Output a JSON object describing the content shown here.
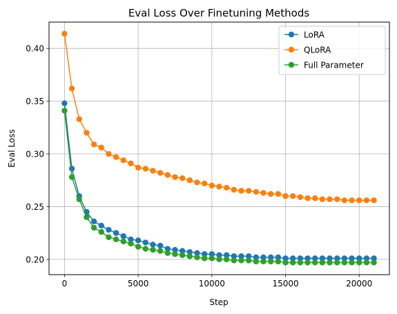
{
  "chart_data": {
    "type": "line",
    "title": "Eval Loss Over Finetuning Methods",
    "xlabel": "Step",
    "ylabel": "Eval Loss",
    "xlim": [
      -1050,
      22050
    ],
    "ylim": [
      0.1855,
      0.425
    ],
    "xticks": [
      0,
      5000,
      10000,
      15000,
      20000
    ],
    "xtick_labels": [
      "0",
      "5000",
      "10000",
      "15000",
      "20000"
    ],
    "yticks": [
      0.2,
      0.25,
      0.3,
      0.35,
      0.4
    ],
    "ytick_labels": [
      "0.20",
      "0.25",
      "0.30",
      "0.35",
      "0.40"
    ],
    "grid": true,
    "legend": "top-right",
    "x": [
      0,
      500,
      1000,
      1500,
      2000,
      2500,
      3000,
      3500,
      4000,
      4500,
      5000,
      5500,
      6000,
      6500,
      7000,
      7500,
      8000,
      8500,
      9000,
      9500,
      10000,
      10500,
      11000,
      11500,
      12000,
      12500,
      13000,
      13500,
      14000,
      14500,
      15000,
      15500,
      16000,
      16500,
      17000,
      17500,
      18000,
      18500,
      19000,
      19500,
      20000,
      20500,
      21000
    ],
    "series": [
      {
        "name": "LoRA",
        "color": "#1f77b4",
        "values": [
          0.348,
          0.286,
          0.26,
          0.245,
          0.236,
          0.232,
          0.228,
          0.225,
          0.222,
          0.219,
          0.218,
          0.216,
          0.214,
          0.213,
          0.21,
          0.209,
          0.208,
          0.207,
          0.206,
          0.205,
          0.205,
          0.204,
          0.204,
          0.203,
          0.203,
          0.203,
          0.202,
          0.202,
          0.202,
          0.202,
          0.201,
          0.201,
          0.201,
          0.201,
          0.201,
          0.201,
          0.201,
          0.201,
          0.201,
          0.201,
          0.201,
          0.201,
          0.201
        ]
      },
      {
        "name": "QLoRA",
        "color": "#ff7f0e",
        "values": [
          0.414,
          0.362,
          0.333,
          0.32,
          0.309,
          0.306,
          0.3,
          0.297,
          0.294,
          0.291,
          0.287,
          0.286,
          0.284,
          0.282,
          0.28,
          0.278,
          0.277,
          0.275,
          0.273,
          0.272,
          0.27,
          0.269,
          0.268,
          0.266,
          0.265,
          0.265,
          0.264,
          0.263,
          0.262,
          0.262,
          0.26,
          0.26,
          0.259,
          0.258,
          0.258,
          0.257,
          0.257,
          0.257,
          0.256,
          0.256,
          0.256,
          0.256,
          0.256
        ]
      },
      {
        "name": "Full Parameter",
        "color": "#2ca02c",
        "values": [
          0.341,
          0.278,
          0.257,
          0.24,
          0.23,
          0.226,
          0.221,
          0.219,
          0.217,
          0.215,
          0.212,
          0.21,
          0.209,
          0.208,
          0.206,
          0.205,
          0.204,
          0.203,
          0.202,
          0.201,
          0.201,
          0.2,
          0.2,
          0.199,
          0.199,
          0.199,
          0.198,
          0.198,
          0.198,
          0.198,
          0.197,
          0.197,
          0.197,
          0.197,
          0.197,
          0.197,
          0.197,
          0.197,
          0.197,
          0.197,
          0.197,
          0.197,
          0.197
        ]
      }
    ]
  }
}
